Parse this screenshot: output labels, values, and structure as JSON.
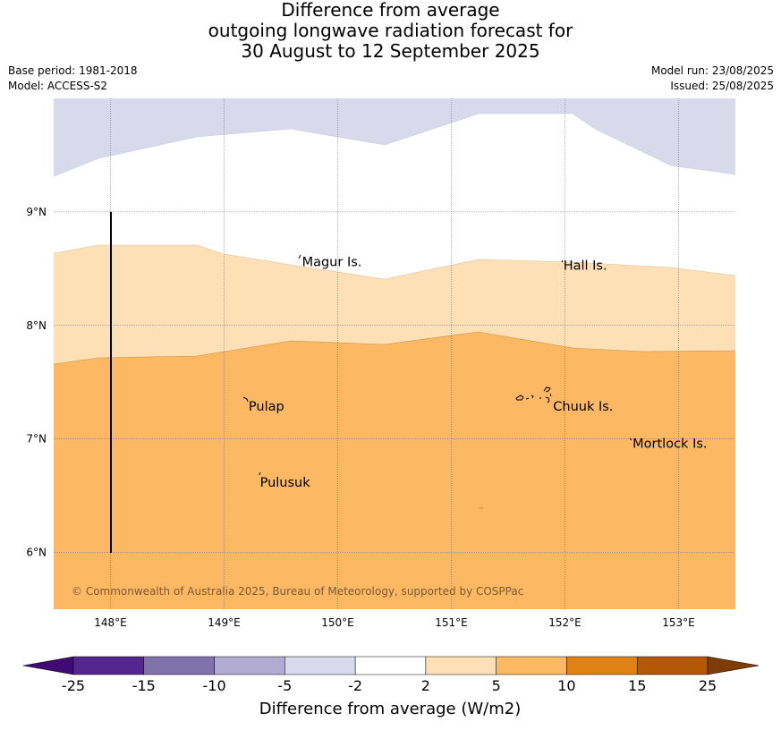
{
  "title": {
    "line1": "Difference from average",
    "line2": "outgoing longwave radiation forecast for",
    "line3": "30 August to 12 September 2025"
  },
  "meta": {
    "base_period": "Base period: 1981-2018",
    "model": "Model: ACCESS-S2",
    "model_run": "Model run: 23/08/2025",
    "issued": "Issued: 25/08/2025"
  },
  "map": {
    "lon_range": [
      147.5,
      153.5
    ],
    "lat_range": [
      5.5,
      10.0
    ],
    "x_ticks": [
      "148°E",
      "149°E",
      "150°E",
      "151°E",
      "152°E",
      "153°E"
    ],
    "x_tick_values": [
      148,
      149,
      150,
      151,
      152,
      153
    ],
    "y_ticks": [
      "9°N",
      "8°N",
      "7°N",
      "6°N"
    ],
    "y_tick_values": [
      9,
      8,
      7,
      6
    ],
    "gridlines": true,
    "places": [
      {
        "name": "Magur Is.",
        "lon": 149.67,
        "lat": 8.56
      },
      {
        "name": "Hall Is.",
        "lon": 151.97,
        "lat": 8.53
      },
      {
        "name": "Pulap",
        "lon": 149.2,
        "lat": 7.29
      },
      {
        "name": "Chuuk Is.",
        "lon": 151.88,
        "lat": 7.29
      },
      {
        "name": "Mortlock Is.",
        "lon": 152.58,
        "lat": 6.96
      },
      {
        "name": "Pulusuk",
        "lon": 149.3,
        "lat": 6.62
      }
    ],
    "copyright": "© Commonwealth of Australia 2025, Bureau of Meteorology, supported by COSPPac"
  },
  "colorbar": {
    "title": "Difference from average (W/m2)",
    "labels": [
      "-25",
      "-15",
      "-10",
      "-5",
      "-2",
      "2",
      "5",
      "10",
      "15",
      "25"
    ],
    "colors": [
      "#3f0a72",
      "#54278f",
      "#8073ac",
      "#b2abd2",
      "#d8daeb",
      "#ffffff",
      "#fee0b6",
      "#fdb863",
      "#e08214",
      "#b35806",
      "#7f3b08"
    ]
  }
}
